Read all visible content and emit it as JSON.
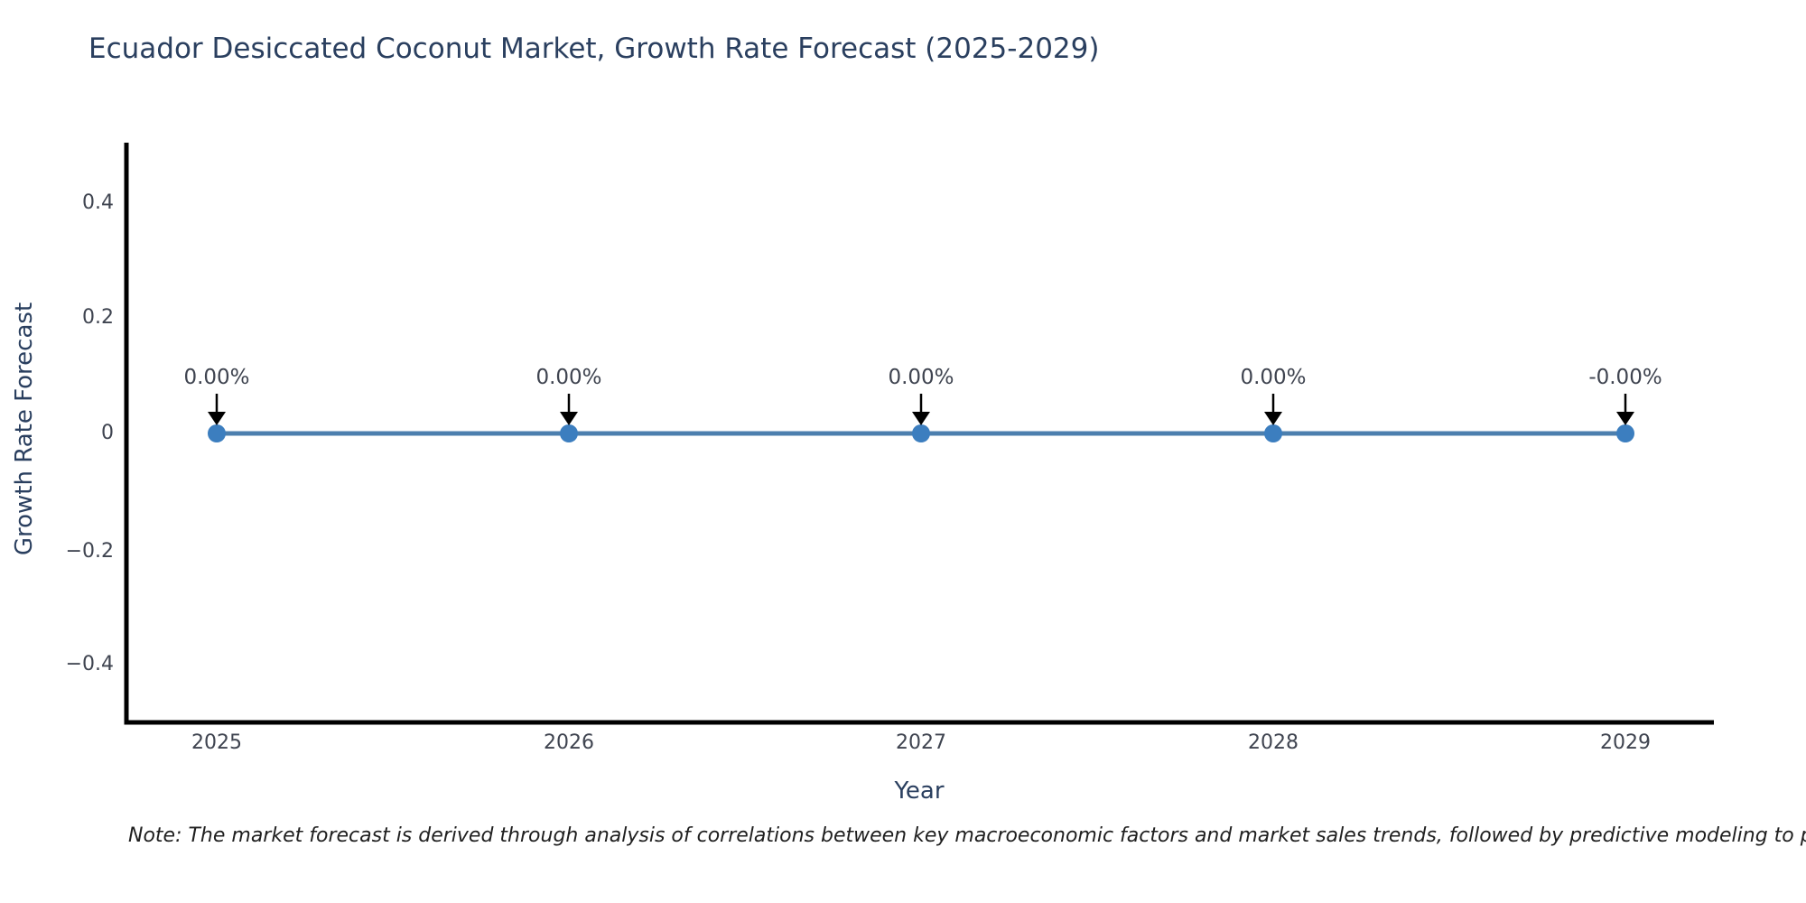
{
  "chart_data": {
    "type": "line",
    "title": "Ecuador Desiccated Coconut Market, Growth Rate Forecast (2025-2029)",
    "xlabel": "Year",
    "ylabel": "Growth Rate Forecast",
    "categories": [
      "2025",
      "2026",
      "2027",
      "2028",
      "2029"
    ],
    "x": [
      2025,
      2026,
      2027,
      2028,
      2029
    ],
    "values": [
      0,
      0,
      0,
      0,
      0
    ],
    "point_labels": [
      "0.00%",
      "0.00%",
      "0.00%",
      "0.00%",
      "-0.00%"
    ],
    "ylim": [
      -0.5,
      0.5
    ],
    "yticks": [
      0.4,
      0.2,
      0,
      -0.2,
      -0.4
    ],
    "ytick_labels": [
      "0.4",
      "0.2",
      "0",
      "−0.2",
      "−0.4"
    ],
    "grid": false,
    "legend": false,
    "line_color": "#4c7fae",
    "marker_color": "#3c7ebf",
    "axis_color": "#000000",
    "annotation_arrow_color": "#000000",
    "note": "Note: The market forecast is derived through analysis of correlations between key macroeconomic factors and market sales trends, followed by predictive modeling to project future sales"
  }
}
